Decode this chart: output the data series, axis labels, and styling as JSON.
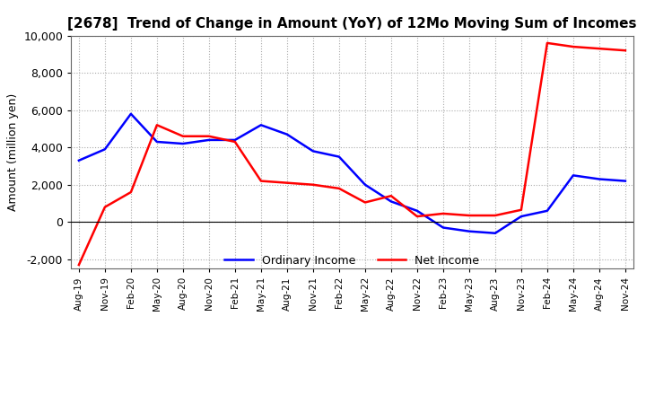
{
  "title": "[2678]  Trend of Change in Amount (YoY) of 12Mo Moving Sum of Incomes",
  "ylabel": "Amount (million yen)",
  "ylim": [
    -2500,
    10000
  ],
  "yticks": [
    -2000,
    0,
    2000,
    4000,
    6000,
    8000,
    10000
  ],
  "x_labels": [
    "Aug-19",
    "Nov-19",
    "Feb-20",
    "May-20",
    "Aug-20",
    "Nov-20",
    "Feb-21",
    "May-21",
    "Aug-21",
    "Nov-21",
    "Feb-22",
    "May-22",
    "Aug-22",
    "Nov-22",
    "Feb-23",
    "May-23",
    "Aug-23",
    "Nov-23",
    "Feb-24",
    "May-24",
    "Aug-24",
    "Nov-24"
  ],
  "ordinary_income": [
    3300,
    3900,
    5800,
    4300,
    4200,
    4400,
    4400,
    5200,
    4700,
    3800,
    3500,
    2000,
    1100,
    600,
    -300,
    -500,
    -600,
    300,
    600,
    2500,
    2300,
    2200
  ],
  "net_income": [
    -2300,
    800,
    1600,
    5200,
    4600,
    4600,
    4300,
    2200,
    2100,
    2000,
    1800,
    1050,
    1400,
    300,
    450,
    350,
    350,
    650,
    9600,
    9400,
    9300,
    9200
  ],
  "ordinary_color": "#0000ff",
  "net_color": "#ff0000",
  "background_color": "#ffffff",
  "grid_color": "#aaaaaa",
  "title_fontsize": 11,
  "legend_labels": [
    "Ordinary Income",
    "Net Income"
  ]
}
